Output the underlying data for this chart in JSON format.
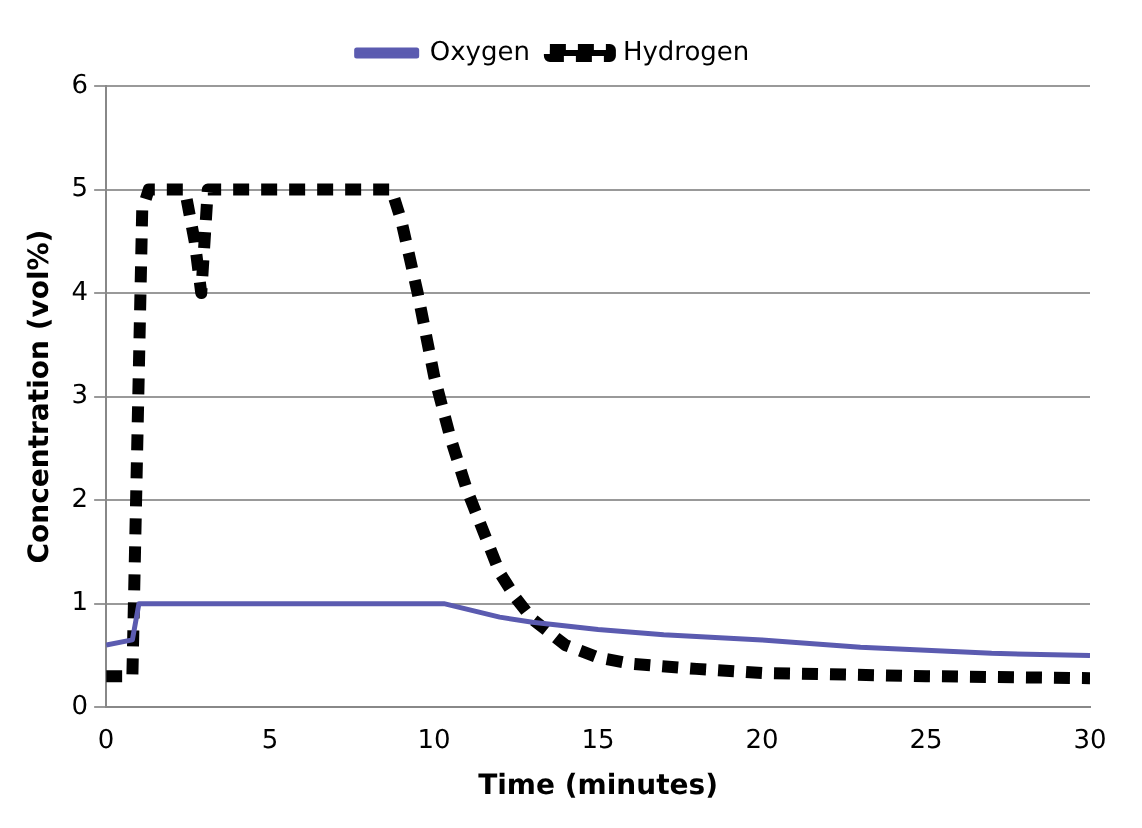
{
  "chart_data": {
    "type": "line",
    "xlabel": "Time (minutes)",
    "ylabel": "Concentration (vol%)",
    "xlim": [
      0,
      30
    ],
    "xticks": [
      0,
      5,
      10,
      15,
      20,
      25,
      30
    ],
    "ylim": [
      0,
      6
    ],
    "yticks": [
      0,
      1,
      2,
      3,
      4,
      5,
      6
    ],
    "grid": "y",
    "legend": "top",
    "marker": "none",
    "series": [
      {
        "name": "Oxygen",
        "color": "#5b5bb0",
        "line_style": "solid",
        "x": [
          0,
          0.8,
          1.0,
          10.3,
          12,
          13,
          15,
          17,
          20,
          23,
          25,
          27,
          30
        ],
        "values": [
          0.6,
          0.65,
          1.0,
          1.0,
          0.87,
          0.82,
          0.75,
          0.7,
          0.65,
          0.58,
          0.55,
          0.52,
          0.5
        ]
      },
      {
        "name": "Hydrogen",
        "color": "#000000",
        "line_style": "dashed",
        "x": [
          0,
          0.8,
          1.1,
          1.3,
          2.4,
          2.7,
          2.9,
          3.1,
          5,
          8.7,
          9,
          9.5,
          10,
          10.5,
          11,
          11.5,
          12,
          12.5,
          13,
          14,
          15,
          16,
          18,
          20,
          25,
          30
        ],
        "values": [
          0.3,
          0.3,
          4.8,
          5,
          5,
          4.5,
          4.0,
          5,
          5,
          5,
          4.7,
          4.0,
          3.2,
          2.6,
          2.1,
          1.7,
          1.3,
          1.05,
          0.85,
          0.6,
          0.48,
          0.42,
          0.37,
          0.33,
          0.3,
          0.28
        ]
      }
    ]
  }
}
